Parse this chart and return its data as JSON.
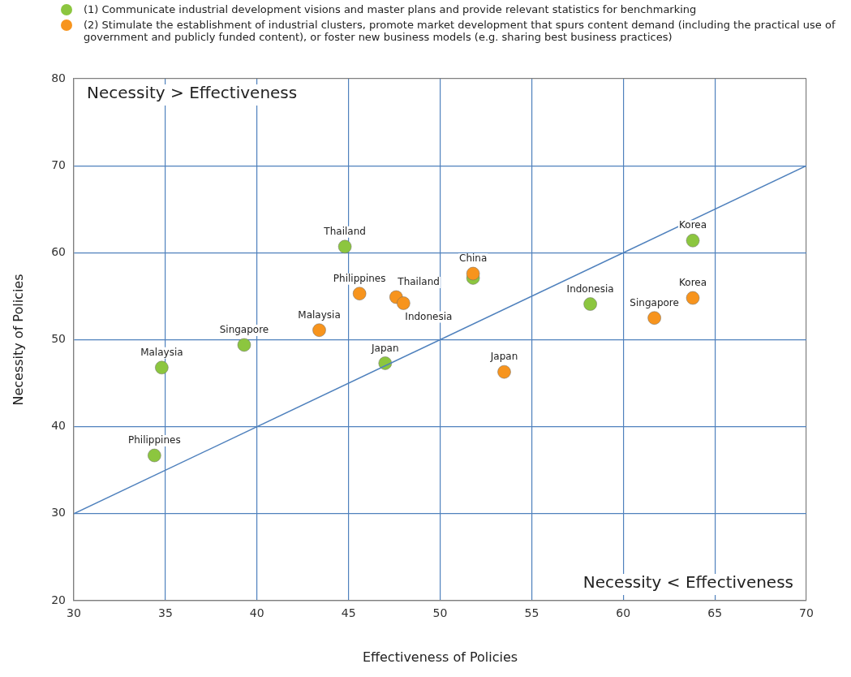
{
  "chart_data": {
    "type": "scatter",
    "xlabel": "Effectiveness of Policies",
    "ylabel": "Necessity of Policies",
    "xlim": [
      30,
      70
    ],
    "xticks": [
      30,
      35,
      40,
      45,
      50,
      55,
      60,
      65,
      70
    ],
    "ylim": [
      20,
      80
    ],
    "yticks": [
      20,
      30,
      40,
      50,
      60,
      70,
      80
    ],
    "grid": true,
    "legend": "top",
    "marker": "circle",
    "series": [
      {
        "name": "(1) Communicate industrial development visions and master plans and provide relevant statistics for benchmarking",
        "color": "#8cc63f",
        "x": [
          44.8,
          51.8,
          63.8,
          58.2,
          39.3,
          34.8,
          47.0,
          34.4
        ],
        "values": [
          60.7,
          57.1,
          61.4,
          54.1,
          49.4,
          46.8,
          47.3,
          36.7
        ]
      },
      {
        "name": "(2) Stimulate the establishment of industrial clusters, promote market development that spurs content demand (including the practical use of government and publicly funded content), or foster new business models (e.g. sharing best business practices)",
        "color": "#f7941d",
        "x": [
          51.8,
          45.6,
          47.6,
          48.0,
          43.4,
          53.5,
          61.7,
          63.8
        ],
        "values": [
          57.6,
          55.3,
          54.9,
          54.2,
          51.1,
          46.3,
          52.5,
          54.8
        ]
      },
      {
        "type": "line",
        "marker": "none",
        "color": "#4f81bd",
        "x": [
          30,
          70
        ],
        "values": [
          30,
          70
        ]
      }
    ],
    "annotations": [
      "Necessity > Effectiveness",
      "Necessity < Effectiveness",
      {
        "text": "Thailand",
        "x": 44.8,
        "y": 60.7
      },
      {
        "text": "Korea",
        "x": 63.8,
        "y": 61.4
      },
      {
        "text": "Indonesia",
        "x": 58.2,
        "y": 54.1
      },
      {
        "text": "Singapore",
        "x": 39.3,
        "y": 49.4
      },
      {
        "text": "Malaysia",
        "x": 34.8,
        "y": 46.8
      },
      {
        "text": "Japan",
        "x": 47.0,
        "y": 47.3
      },
      {
        "text": "Philippines",
        "x": 34.4,
        "y": 36.7
      },
      {
        "text": "China",
        "x": 51.8,
        "y": 57.6
      },
      {
        "text": "Philippines",
        "x": 45.6,
        "y": 55.3
      },
      {
        "text": "Thailand",
        "x": 47.6,
        "y": 54.9
      },
      {
        "text": "Indonesia",
        "x": 48.0,
        "y": 54.2
      },
      {
        "text": "Malaysia",
        "x": 43.4,
        "y": 51.1
      },
      {
        "text": "Japan",
        "x": 53.5,
        "y": 46.3
      },
      {
        "text": "Singapore",
        "x": 61.7,
        "y": 52.5
      },
      {
        "text": "Korea",
        "x": 63.8,
        "y": 54.8
      }
    ]
  }
}
